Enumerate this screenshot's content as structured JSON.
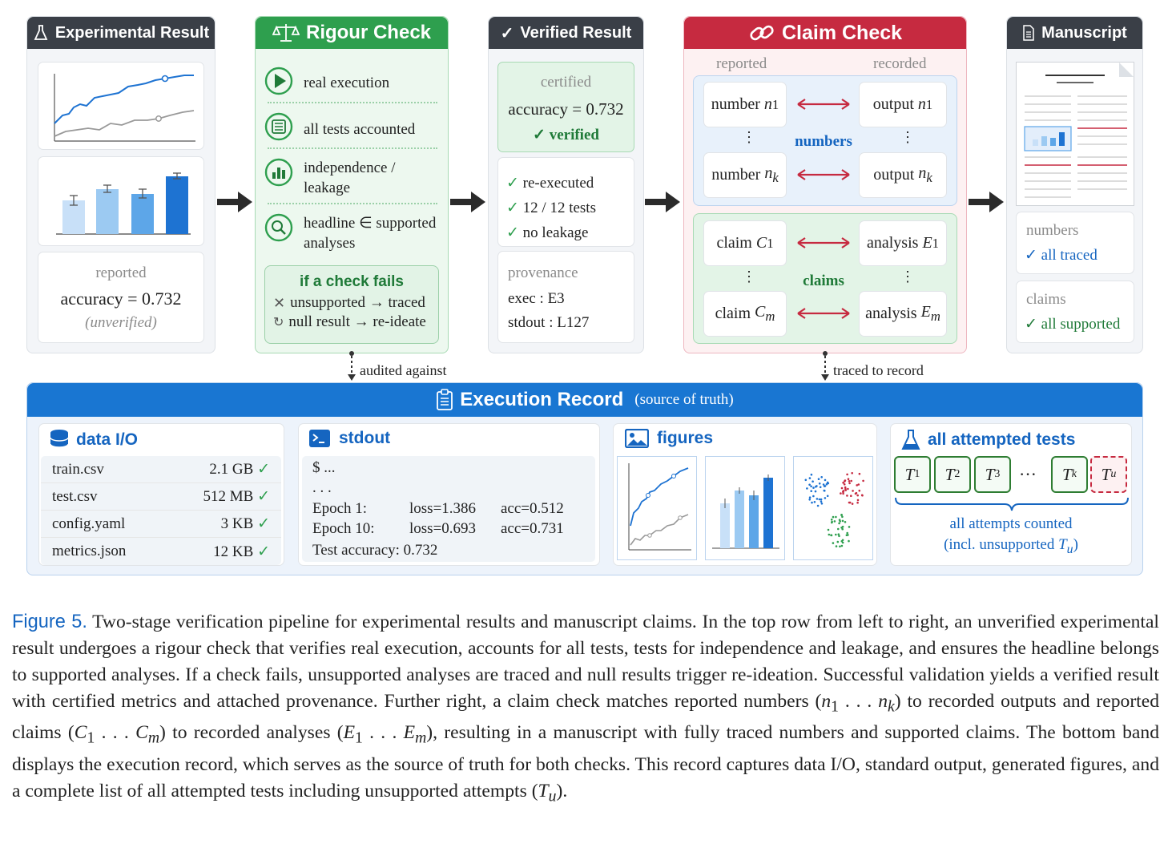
{
  "colors": {
    "dark_header": "#3a3f47",
    "green": "#2e9f4e",
    "green_dark": "#1f7a38",
    "red": "#c62a40",
    "blue": "#1976d2",
    "blue_text": "#1565c0"
  },
  "experimental": {
    "title": "Experimental Result",
    "icon": "flask-icon",
    "reported_label": "reported",
    "accuracy": "accuracy = 0.732",
    "unverified": "(unverified)"
  },
  "rigour": {
    "title": "Rigour Check",
    "icon": "scales-icon",
    "items": [
      {
        "icon": "play-icon",
        "label": "real execution"
      },
      {
        "icon": "list-icon",
        "label": "all tests accounted"
      },
      {
        "icon": "bar-chart-icon",
        "label": "independence / leakage"
      },
      {
        "icon": "magnifier-icon",
        "label": "headline ∈ supported analyses"
      }
    ],
    "fail_title": "if a check fails",
    "fail_1": "unsupported → traced",
    "fail_2": "null result → re-ideate",
    "audited": "audited against"
  },
  "verified": {
    "title": "Verified Result",
    "certified": "certified",
    "accuracy": "accuracy = 0.732",
    "verified": "verified",
    "checks": [
      "re-executed",
      "12 / 12 tests",
      "no leakage"
    ],
    "provenance": "provenance",
    "exec": "exec : E3",
    "stdout": "stdout : L127"
  },
  "claim": {
    "title": "Claim Check",
    "reported": "reported",
    "recorded": "recorded",
    "numbers_label": "numbers",
    "claims_label": "claims",
    "traced": "traced to record"
  },
  "manuscript": {
    "title": "Manuscript",
    "numbers": "numbers",
    "all_traced": "all traced",
    "claims": "claims",
    "all_supported": "all supported"
  },
  "record": {
    "title": "Execution Record",
    "subtitle": "(source of truth)",
    "dataio": {
      "title": "data I/O",
      "files": [
        {
          "name": "train.csv",
          "size": "2.1 GB"
        },
        {
          "name": "test.csv",
          "size": "512 MB"
        },
        {
          "name": "config.yaml",
          "size": "3 KB"
        },
        {
          "name": "metrics.json",
          "size": "12 KB"
        }
      ]
    },
    "stdout": {
      "title": "stdout",
      "prompt": "$ ...",
      "dots": ". . .",
      "lines": [
        {
          "epoch": "Epoch  1:",
          "loss": "loss=1.386",
          "acc": "acc=0.512"
        },
        {
          "epoch": "Epoch 10:",
          "loss": "loss=0.693",
          "acc": "acc=0.731"
        }
      ],
      "test": "Test accuracy: 0.732"
    },
    "figures": {
      "title": "figures"
    },
    "tests": {
      "title": "all attempted tests",
      "ellipsis": "···",
      "counted": "all attempts counted",
      "incl": "(incl. unsupported"
    }
  },
  "caption": {
    "label": "Figure 5.",
    "p1": "Two-stage verification pipeline for experimental results and manuscript claims. In the top row from left to right, an unverified experimental result undergoes a rigour check that verifies real execution, accounts for all tests, tests for independence and leakage, and ensures the headline belongs to supported analyses. If a check fails, unsupported analyses are traced and null results trigger re-ideation. Successful validation yields a verified result with certified metrics and attached provenance. Further right, a claim check matches reported numbers (",
    "p2": ") to recorded outputs and reported claims (",
    "p3": ") to recorded analyses (",
    "p4": "), resulting in a manuscript with fully traced numbers and supported claims. The bottom band displays the execution record, which serves as the source of truth for both checks. This record captures data I/O, standard output, generated figures, and a complete list of all attempted tests including unsupported attempts ("
  }
}
